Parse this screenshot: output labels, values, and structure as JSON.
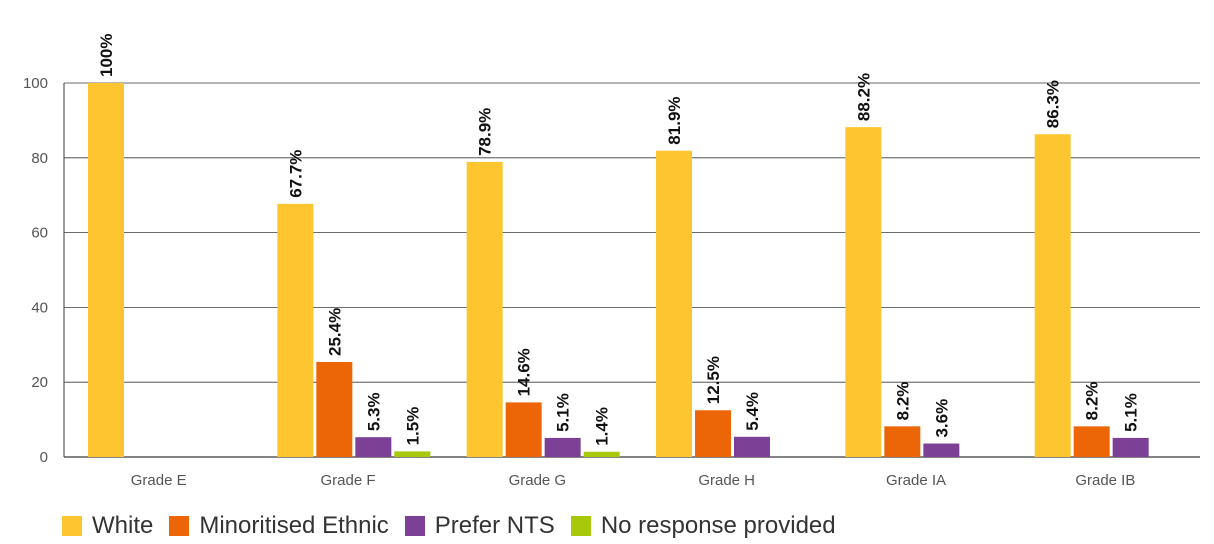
{
  "chart_data": {
    "type": "bar",
    "categories": [
      "Grade E",
      "Grade F",
      "Grade G",
      "Grade H",
      "Grade IA",
      "Grade IB"
    ],
    "series": [
      {
        "name": "White",
        "color": "#FDC52F",
        "values": [
          100,
          67.7,
          78.9,
          81.9,
          88.2,
          86.3
        ],
        "labels": [
          "100%",
          "67.7%",
          "78.9%",
          "81.9%",
          "88.2%",
          "86.3%"
        ]
      },
      {
        "name": "Minoritised Ethnic",
        "color": "#EC6608",
        "values": [
          null,
          25.4,
          14.6,
          12.5,
          8.2,
          8.2
        ],
        "labels": [
          null,
          "25.4%",
          "14.6%",
          "12.5%",
          "8.2%",
          "8.2%"
        ]
      },
      {
        "name": "Prefer NTS",
        "color": "#7C4196",
        "values": [
          null,
          5.3,
          5.1,
          5.4,
          3.6,
          5.1
        ],
        "labels": [
          null,
          "5.3%",
          "5.1%",
          "5.4%",
          "3.6%",
          "5.1%"
        ]
      },
      {
        "name": "No response provided",
        "color": "#A8C80B",
        "values": [
          null,
          1.5,
          1.4,
          null,
          null,
          null
        ],
        "labels": [
          null,
          "1.5%",
          "1.4%",
          null,
          null,
          null
        ]
      }
    ],
    "yticks": [
      "0",
      "20",
      "40",
      "60",
      "80",
      "100"
    ],
    "ylim": [
      0,
      100
    ],
    "grid": true,
    "legend_position": "bottom-left"
  }
}
